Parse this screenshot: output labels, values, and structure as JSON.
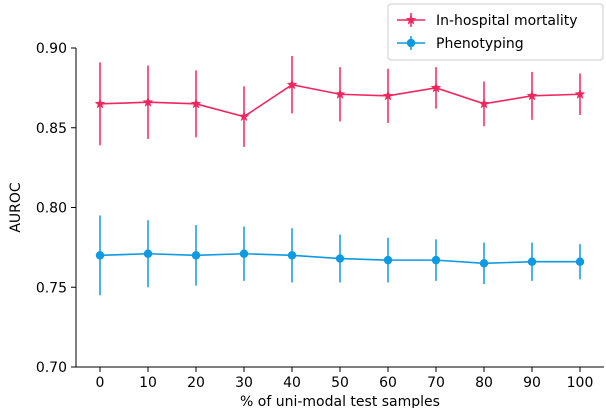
{
  "chart_data": {
    "type": "line",
    "xlabel": "% of uni-modal test samples",
    "ylabel": "AUROC",
    "x": [
      0,
      10,
      20,
      30,
      40,
      50,
      60,
      70,
      80,
      90,
      100
    ],
    "xlim": [
      -5,
      105
    ],
    "ylim": [
      0.7,
      0.9
    ],
    "xticks": [
      "0",
      "10",
      "20",
      "30",
      "40",
      "50",
      "60",
      "70",
      "80",
      "90",
      "100"
    ],
    "yticks": [
      "0.70",
      "0.75",
      "0.80",
      "0.85",
      "0.90"
    ],
    "grid": false,
    "legend_position": "top-right",
    "series": [
      {
        "name": "In-hospital mortality",
        "color": "#f0275f",
        "marker": "star",
        "values": [
          0.865,
          0.866,
          0.865,
          0.857,
          0.877,
          0.871,
          0.87,
          0.875,
          0.865,
          0.87,
          0.871
        ],
        "errors": [
          0.026,
          0.023,
          0.021,
          0.019,
          0.018,
          0.017,
          0.017,
          0.013,
          0.014,
          0.015,
          0.013
        ]
      },
      {
        "name": "Phenotyping",
        "color": "#0e9ae0",
        "marker": "circle",
        "values": [
          0.77,
          0.771,
          0.77,
          0.771,
          0.77,
          0.768,
          0.767,
          0.767,
          0.765,
          0.766,
          0.766
        ],
        "errors": [
          0.025,
          0.021,
          0.019,
          0.017,
          0.017,
          0.015,
          0.014,
          0.013,
          0.013,
          0.012,
          0.011
        ]
      }
    ]
  }
}
